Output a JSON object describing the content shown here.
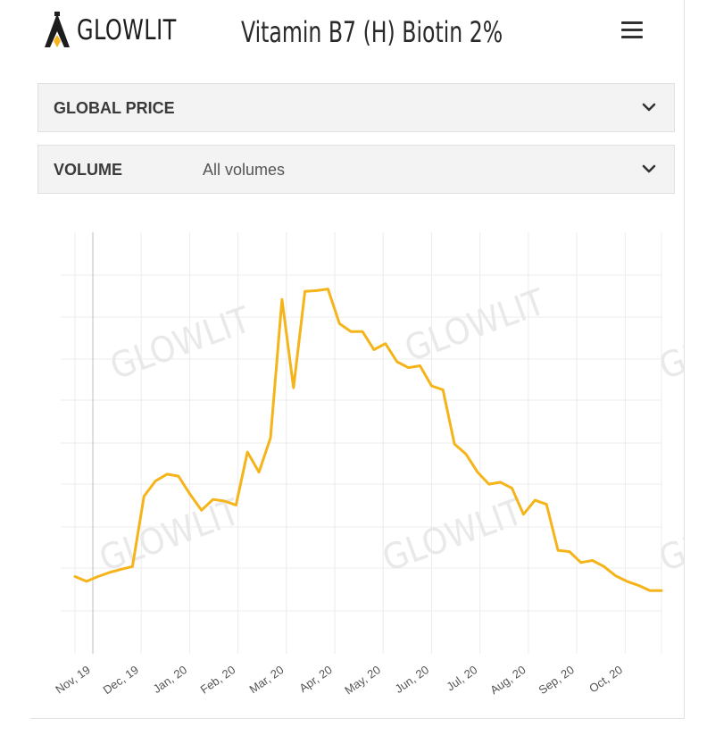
{
  "header": {
    "logo_text": "GLOWLIT",
    "title": "Vitamin B7 (H) Biotin 2%"
  },
  "icons": {
    "logo": "glowlit-logo-icon",
    "menu": "hamburger-menu-icon",
    "chevron": "chevron-down-icon"
  },
  "colors": {
    "line": "#f4b41a",
    "logo_accent": "#f4b41a",
    "panel_bg": "#f3f3f3"
  },
  "filters": {
    "global_price": {
      "label": "GLOBAL PRICE"
    },
    "volume": {
      "label": "VOLUME",
      "value": "All volumes"
    }
  },
  "watermark": "GLOWLIT",
  "chart_data": {
    "type": "line",
    "title": "",
    "xlabel": "",
    "ylabel": "",
    "x_ticks": [
      "Nov, 19",
      "Dec, 19",
      "Jan, 20",
      "Feb, 20",
      "Mar, 20",
      "Apr, 20",
      "May, 20",
      "Jun, 20",
      "Jul, 20",
      "Aug, 20",
      "Sep, 20",
      "Oct, 20"
    ],
    "y_tick_labels_visible": false,
    "grid": true,
    "series": [
      {
        "values": [
          0.5,
          0.38,
          0.5,
          0.6,
          0.68,
          0.75,
          2.5,
          2.88,
          3.05,
          3.0,
          2.55,
          2.15,
          2.42,
          2.38,
          2.28,
          3.6,
          3.1,
          3.95,
          7.4,
          5.2,
          7.6,
          7.62,
          7.66,
          6.8,
          6.6,
          6.6,
          6.15,
          6.3,
          5.85,
          5.7,
          5.75,
          5.25,
          5.15,
          3.8,
          3.55,
          3.1,
          2.8,
          2.85,
          2.7,
          2.05,
          2.4,
          2.3,
          1.15,
          1.12,
          0.85,
          0.9,
          0.75,
          0.52,
          0.38,
          0.28,
          0.15,
          0.15
        ],
        "y_range": [
          0,
          9
        ],
        "note_units": "relative price level (axis unlabeled)"
      }
    ]
  }
}
